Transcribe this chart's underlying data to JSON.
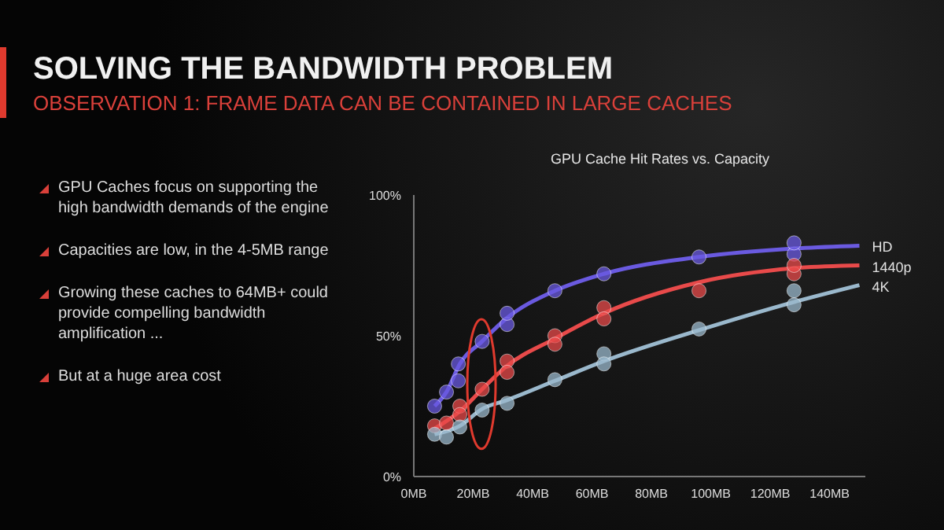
{
  "chart_data": {
    "type": "line",
    "title": "SOLVING THE BANDWIDTH PROBLEM",
    "subtitle": "OBSERVATION 1: FRAME DATA CAN BE CONTAINED IN LARGE CACHES",
    "annotations": [
      "GPU Caches focus on supporting the high bandwidth demands of the engine",
      "Capacities are low, in the 4-5MB range",
      "Growing these caches to 64MB+ could provide compelling bandwidth amplification ...",
      "But at a huge area cost",
      "GPU Cache Hit Rates vs. Capacity"
    ],
    "xlim": [
      0,
      152
    ],
    "xticks": [
      {
        "value": 0,
        "label": "0MB"
      },
      {
        "value": 20,
        "label": "20MB"
      },
      {
        "value": 40,
        "label": "40MB"
      },
      {
        "value": 60,
        "label": "60MB"
      },
      {
        "value": 80,
        "label": "80MB"
      },
      {
        "value": 100,
        "label": "100MB"
      },
      {
        "value": 120,
        "label": "120MB"
      },
      {
        "value": 140,
        "label": "140MB"
      }
    ],
    "ylim": [
      0,
      100
    ],
    "yticks": [
      {
        "value": 0,
        "label": "0%"
      },
      {
        "value": 50,
        "label": "50%"
      },
      {
        "value": 100,
        "label": "100%"
      }
    ],
    "grid": false,
    "legend": false,
    "series": [
      {
        "name": "HD",
        "color": "#6a5ae0",
        "marker": "none",
        "x": [
          7,
          11,
          15.5,
          23,
          31,
          47.5,
          64,
          96,
          128,
          150
        ],
        "values": [
          25,
          30,
          40,
          48,
          56,
          66,
          72,
          78,
          81,
          82
        ]
      },
      {
        "name": "1440p",
        "color": "#e84a4a",
        "marker": "none",
        "x": [
          7,
          16.4,
          23,
          31,
          47.5,
          64,
          96,
          128,
          150
        ],
        "values": [
          17,
          24,
          31,
          39,
          49,
          58,
          69,
          74,
          75
        ]
      },
      {
        "name": "4K",
        "color": "#9ab8cc",
        "marker": "none",
        "x": [
          7,
          15.5,
          23,
          31,
          47.5,
          64,
          96,
          128,
          150
        ],
        "values": [
          15,
          18,
          24,
          27,
          34,
          41,
          52,
          62,
          68
        ]
      },
      {
        "type": "scatter",
        "color": "#6a5ae0",
        "marker": "circle",
        "x": [
          7,
          11,
          15,
          15,
          23,
          31.4,
          31.4,
          47.5,
          64,
          96,
          128,
          128
        ],
        "values": [
          25,
          30,
          34,
          40,
          48,
          54,
          58,
          66,
          72,
          78,
          79,
          83
        ]
      },
      {
        "type": "scatter",
        "color": "#e84a4a",
        "marker": "circle",
        "x": [
          7,
          11,
          15.5,
          15.5,
          23,
          31.4,
          31.4,
          47.5,
          47.5,
          64,
          64,
          96,
          128,
          128
        ],
        "values": [
          18,
          19,
          25,
          22,
          31,
          41,
          37,
          50,
          47,
          60,
          56,
          66,
          72,
          75
        ]
      },
      {
        "type": "scatter",
        "color": "#9ab8cc",
        "marker": "circle",
        "x": [
          7,
          11,
          15.5,
          23,
          31.4,
          47.5,
          64,
          64,
          96,
          128,
          128
        ],
        "values": [
          15,
          14,
          17.6,
          23.6,
          26,
          34.4,
          43.6,
          40,
          52.4,
          66,
          61
        ]
      }
    ]
  }
}
